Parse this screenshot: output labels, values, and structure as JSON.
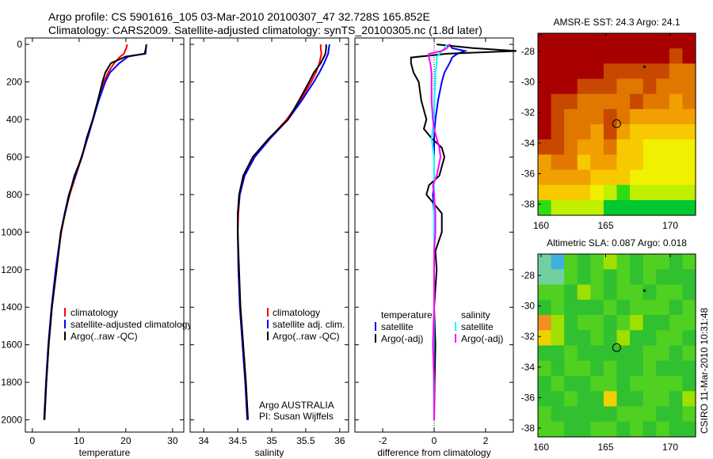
{
  "title_line1": "Argo profile: CS 5901616_105 03-Mar-2010 20100307_47 32.728S 165.852E",
  "title_line2": "Climatology: CARS2009. Satellite-adjusted climatology: synTS_20100305.nc (1.8d later)",
  "credit": "CSIRO 11-Mar-2010 10:31:48",
  "chart_data": [
    {
      "type": "line",
      "name": "temperature",
      "xlabel": "temperature",
      "xlim": [
        -1.5,
        32.4
      ],
      "ylim": [
        2065,
        -34
      ],
      "xticks": [
        0,
        10,
        20,
        30
      ],
      "yticks": [
        0,
        200,
        400,
        600,
        800,
        1000,
        1200,
        1400,
        1600,
        1800,
        2000
      ],
      "depth": [
        0,
        20,
        50,
        65,
        100,
        150,
        200,
        300,
        400,
        500,
        600,
        700,
        800,
        900,
        1000,
        1200,
        1400,
        1600,
        1800,
        2000
      ],
      "series": [
        {
          "name": "climatology",
          "color": "#ff0000",
          "values": [
            20.3,
            20.1,
            19.6,
            18.8,
            17.5,
            16.2,
            15.3,
            14.1,
            13.0,
            11.8,
            10.6,
            9.3,
            8.0,
            7.0,
            6.2,
            5.1,
            4.2,
            3.5,
            3.0,
            2.6
          ]
        },
        {
          "name": "satellite-adjusted climatology",
          "color": "#0000ff",
          "values": [
            24.4,
            24.3,
            24.0,
            20.5,
            18.6,
            16.6,
            15.6,
            14.2,
            13.0,
            11.8,
            10.5,
            9.2,
            7.8,
            6.9,
            6.1,
            5.0,
            4.1,
            3.4,
            2.9,
            2.5
          ]
        },
        {
          "name": "Argo(..raw -QC)",
          "color": "#000000",
          "values": [
            24.4,
            24.3,
            24.2,
            20.0,
            16.8,
            15.6,
            15.0,
            14.0,
            12.9,
            11.6,
            10.6,
            9.0,
            7.9,
            7.0,
            6.1,
            5.2,
            4.2,
            3.5,
            3.0,
            2.6
          ]
        }
      ]
    },
    {
      "type": "line",
      "name": "salinity",
      "xlabel": "salinity",
      "xlim": [
        33.8,
        36.13
      ],
      "ylim": [
        2065,
        -34
      ],
      "xticks": [
        34,
        34.5,
        35,
        35.5,
        36
      ],
      "depth": [
        0,
        20,
        50,
        100,
        150,
        200,
        300,
        400,
        500,
        600,
        700,
        800,
        900,
        1000,
        1200,
        1400,
        1600,
        1800,
        2000
      ],
      "series": [
        {
          "name": "climatology",
          "color": "#ff0000",
          "values": [
            35.72,
            35.72,
            35.73,
            35.7,
            35.65,
            35.58,
            35.42,
            35.22,
            34.97,
            34.75,
            34.6,
            34.53,
            34.51,
            34.5,
            34.51,
            34.54,
            34.58,
            34.62,
            34.65
          ]
        },
        {
          "name": "satellite adj. clim.",
          "color": "#0000ff",
          "values": [
            35.85,
            35.84,
            35.83,
            35.77,
            35.7,
            35.62,
            35.44,
            35.24,
            34.98,
            34.75,
            34.6,
            34.53,
            34.5,
            34.5,
            34.51,
            34.53,
            34.57,
            34.61,
            34.64
          ]
        },
        {
          "name": "Argo(..raw -QC)",
          "color": "#000000",
          "values": [
            35.8,
            35.8,
            35.79,
            35.72,
            35.62,
            35.55,
            35.4,
            35.24,
            34.96,
            34.72,
            34.58,
            34.52,
            34.5,
            34.5,
            34.52,
            34.54,
            34.58,
            34.62,
            34.65
          ]
        }
      ],
      "annotation": [
        "Argo AUSTRALIA",
        "PI: Susan Wijffels"
      ]
    },
    {
      "type": "line",
      "name": "difference",
      "xlabel": "difference from climatology",
      "xlim": [
        -3.08,
        3.08
      ],
      "ylim": [
        2065,
        -34
      ],
      "xticks": [
        -2,
        0,
        2
      ],
      "depth": [
        0,
        20,
        35,
        50,
        70,
        100,
        150,
        200,
        300,
        400,
        450,
        500,
        550,
        600,
        700,
        750,
        800,
        900,
        1000,
        1100,
        1200,
        1400,
        1600,
        1800,
        2000
      ],
      "legend_headers": [
        "temperature",
        "salinity"
      ],
      "series": [
        {
          "name": "satellite",
          "group": "temperature",
          "color": "#0000ff",
          "values": [
            0.6,
            0.7,
            1.2,
            0.9,
            0.7,
            0.6,
            0.4,
            0.3,
            0.15,
            0.05,
            0.02,
            0,
            0,
            0,
            0,
            0,
            -0.05,
            0,
            0,
            0,
            0,
            0,
            0,
            0,
            0
          ]
        },
        {
          "name": "Argo(-adj)",
          "group": "temperature",
          "color": "#000000",
          "values": [
            0.1,
            1.5,
            3.2,
            0.5,
            -0.9,
            -0.9,
            -0.8,
            -0.6,
            -0.5,
            -0.3,
            -0.4,
            -0.1,
            0.3,
            0.4,
            0.2,
            -0.2,
            -0.3,
            0.3,
            0.3,
            0.05,
            0.1,
            0.0,
            0.05,
            0.02,
            0
          ]
        },
        {
          "name": "satellite",
          "group": "salinity",
          "color": "#00ffff",
          "values": [
            0.5,
            0.4,
            0.3,
            0.2,
            0.1,
            0.1,
            0.05,
            0.05,
            0,
            0,
            -0.05,
            -0.1,
            -0.05,
            0,
            0,
            0,
            0,
            0,
            0,
            0,
            0,
            0,
            -0.02,
            -0.02,
            0
          ]
        },
        {
          "name": "Argo(-adj)",
          "group": "salinity",
          "color": "#ff00ff",
          "values": [
            0.6,
            0.5,
            0.3,
            -0.2,
            -0.2,
            -0.15,
            -0.1,
            -0.1,
            -0.1,
            -0.05,
            0,
            0.1,
            0.2,
            0.25,
            0.1,
            -0.05,
            0,
            0.05,
            0.05,
            0,
            0,
            0,
            -0.05,
            0,
            0
          ]
        }
      ]
    },
    {
      "type": "heatmap",
      "name": "sst-map",
      "title": "AMSR-E SST: 24.3 Argo: 24.1",
      "lon": [
        160,
        172
      ],
      "lat": [
        -38.8,
        -26.8
      ],
      "xticks": [
        160,
        165,
        170
      ],
      "yticks": [
        -28,
        -30,
        -32,
        -34,
        -36,
        -38
      ],
      "float_position": [
        165.852,
        -32.728
      ],
      "grid": [
        [
          9,
          9,
          9,
          9,
          9,
          9,
          9,
          9,
          9,
          9,
          9,
          9
        ],
        [
          9,
          9,
          9,
          9,
          9,
          9,
          9,
          9,
          9,
          9,
          8,
          9
        ],
        [
          9,
          9,
          9,
          9,
          9,
          8,
          8,
          8,
          8,
          8,
          7,
          7
        ],
        [
          9,
          9,
          9,
          8,
          8,
          8,
          7,
          7,
          8,
          7,
          7,
          7
        ],
        [
          9,
          8,
          8,
          7,
          7,
          7,
          7,
          8,
          7,
          7,
          6,
          7
        ],
        [
          9,
          8,
          7,
          7,
          7,
          8,
          7,
          6,
          6,
          6,
          6,
          6
        ],
        [
          9,
          8,
          7,
          7,
          6,
          8,
          6,
          5,
          5,
          5,
          5,
          5
        ],
        [
          8,
          8,
          7,
          6,
          6,
          7,
          5,
          5,
          4,
          4,
          4,
          4
        ],
        [
          6,
          7,
          7,
          5,
          6,
          6,
          5,
          5,
          4,
          4,
          4,
          4
        ],
        [
          6,
          6,
          6,
          6,
          5,
          5,
          5,
          4,
          4,
          4,
          4,
          4
        ],
        [
          5,
          5,
          5,
          5,
          4,
          3,
          2,
          3,
          3,
          3,
          3,
          3
        ],
        [
          2,
          3,
          3,
          3,
          3,
          1,
          1,
          1,
          1,
          1,
          1,
          1
        ]
      ]
    },
    {
      "type": "heatmap",
      "name": "sla-map",
      "title": "Altimetric SLA: 0.087 Argo: 0.018",
      "lon": [
        160,
        172
      ],
      "lat": [
        -38.6,
        -26.6
      ],
      "xticks": [
        160,
        165,
        170
      ],
      "yticks": [
        -28,
        -30,
        -32,
        -34,
        -36,
        -38
      ],
      "float_position": [
        165.852,
        -32.728
      ],
      "grid": [
        [
          1,
          0,
          3,
          4,
          3,
          5,
          3,
          4,
          3,
          3,
          4,
          3
        ],
        [
          1,
          1,
          3,
          4,
          3,
          4,
          3,
          4,
          3,
          4,
          4,
          4
        ],
        [
          3,
          3,
          4,
          5,
          3,
          4,
          3,
          3,
          4,
          3,
          3,
          4
        ],
        [
          4,
          3,
          4,
          4,
          4,
          3,
          4,
          3,
          3,
          3,
          4,
          3
        ],
        [
          7,
          5,
          4,
          3,
          3,
          4,
          3,
          5,
          4,
          4,
          3,
          3
        ],
        [
          6,
          5,
          4,
          4,
          3,
          4,
          5,
          4,
          4,
          3,
          3,
          4
        ],
        [
          4,
          4,
          3,
          4,
          4,
          4,
          4,
          4,
          3,
          3,
          4,
          3
        ],
        [
          3,
          4,
          3,
          3,
          4,
          3,
          4,
          4,
          3,
          4,
          4,
          4
        ],
        [
          4,
          3,
          4,
          4,
          3,
          3,
          4,
          3,
          3,
          3,
          3,
          4
        ],
        [
          4,
          4,
          3,
          4,
          4,
          6,
          4,
          4,
          3,
          3,
          4,
          5
        ],
        [
          3,
          4,
          4,
          4,
          4,
          4,
          3,
          3,
          3,
          4,
          4,
          3
        ],
        [
          3,
          3,
          4,
          4,
          3,
          3,
          4,
          3,
          4,
          3,
          4,
          4
        ]
      ]
    }
  ]
}
